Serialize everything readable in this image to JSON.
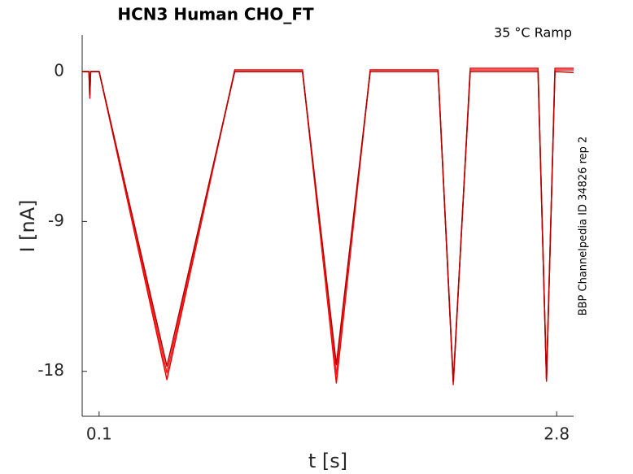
{
  "chart_data": {
    "type": "line",
    "title": "HCN3  Human  CHO_FT",
    "annotation": "35 °C  Ramp",
    "side_note": "BBP Channelpedia ID 34826 rep 2",
    "x_label": "t [s]",
    "y_label": "I [nA]",
    "x": [
      0,
      0.04,
      0.045,
      0.05,
      0.06,
      0.1,
      0.5,
      0.9,
      1.3,
      1.5,
      1.7,
      2.1,
      2.19,
      2.29,
      2.69,
      2.74,
      2.79,
      2.9
    ],
    "series": [
      {
        "color": "#ee0000",
        "values": [
          0,
          0,
          -1.6,
          0,
          0,
          0,
          -18.5,
          0.1,
          0.1,
          -18.7,
          0.1,
          0.1,
          -18.8,
          0.2,
          0.2,
          -18.6,
          0.2,
          0.2
        ]
      },
      {
        "color": "#ff1a1a",
        "values": [
          0,
          0,
          -1.5,
          0,
          0,
          0,
          -18.1,
          0,
          0,
          -18.2,
          0.1,
          0.1,
          -18.7,
          0.1,
          0.1,
          -18.5,
          0.1,
          0.1
        ]
      },
      {
        "color": "#b00000",
        "values": [
          0,
          0,
          -1.4,
          0,
          0,
          0,
          -17.7,
          0,
          0,
          -17.6,
          0,
          0,
          -18.6,
          0,
          0,
          -18.5,
          0,
          -0.05
        ]
      }
    ],
    "xlim": [
      0,
      2.9
    ],
    "ylim": [
      -20.7,
      2.2
    ],
    "xticks": [
      0.1,
      2.8
    ],
    "yticks": [
      -18,
      -9,
      0
    ],
    "grid": false
  }
}
